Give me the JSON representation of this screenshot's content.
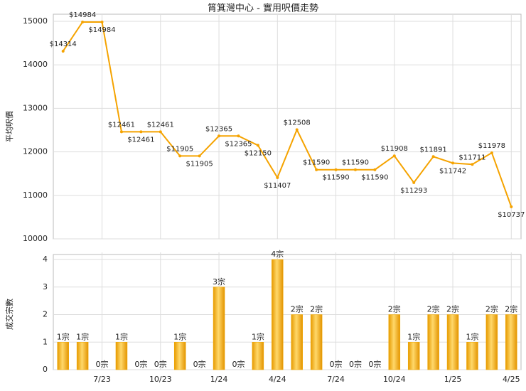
{
  "chart_data": [
    {
      "type": "line",
      "title": "筲箕灣中心 - 實用呎價走勢",
      "y_label": "平均呎價",
      "color": "#f5a300",
      "values": [
        14314,
        14984,
        14984,
        12461,
        12461,
        12461,
        11905,
        11905,
        12365,
        12365,
        12150,
        11407,
        12508,
        11590,
        11590,
        11590,
        11590,
        11908,
        11293,
        11891,
        11742,
        11711,
        11978,
        10737
      ],
      "value_labels": [
        "$14314",
        "$14984",
        "$14984",
        "$12461",
        "$12461",
        "$12461",
        "$11905",
        "$11905",
        "$12365",
        "$12365",
        "$12150",
        "$11407",
        "$12508",
        "$11590",
        "$11590",
        "$11590",
        "$11590",
        "$11908",
        "$11293",
        "$11891",
        "$11742",
        "$11711",
        "$11978",
        "$10737"
      ],
      "ylim": [
        10000,
        15000
      ],
      "yticks": [
        10000,
        11000,
        12000,
        13000,
        14000,
        15000
      ],
      "grid": true
    },
    {
      "type": "bar",
      "y_label": "成交宗數",
      "color": "#f2a900",
      "categories": [
        null,
        null,
        "7/23",
        null,
        null,
        "10/23",
        null,
        null,
        "1/24",
        null,
        null,
        "4/24",
        null,
        null,
        "7/24",
        null,
        null,
        "10/24",
        null,
        null,
        "1/25",
        null,
        null,
        "4/25"
      ],
      "values": [
        1,
        1,
        0,
        1,
        0,
        0,
        1,
        0,
        3,
        0,
        1,
        4,
        2,
        2,
        0,
        0,
        0,
        2,
        1,
        2,
        2,
        1,
        2,
        2
      ],
      "value_labels": [
        "1宗",
        "1宗",
        "0宗",
        "1宗",
        "0宗",
        "0宗",
        "1宗",
        "0宗",
        "3宗",
        "0宗",
        "1宗",
        "4宗",
        "2宗",
        "2宗",
        "0宗",
        "0宗",
        "0宗",
        "2宗",
        "1宗",
        "2宗",
        "2宗",
        "1宗",
        "2宗",
        "2宗"
      ],
      "ylim": [
        0,
        4
      ],
      "yticks": [
        0,
        1,
        2,
        3,
        4
      ],
      "grid": true
    }
  ]
}
